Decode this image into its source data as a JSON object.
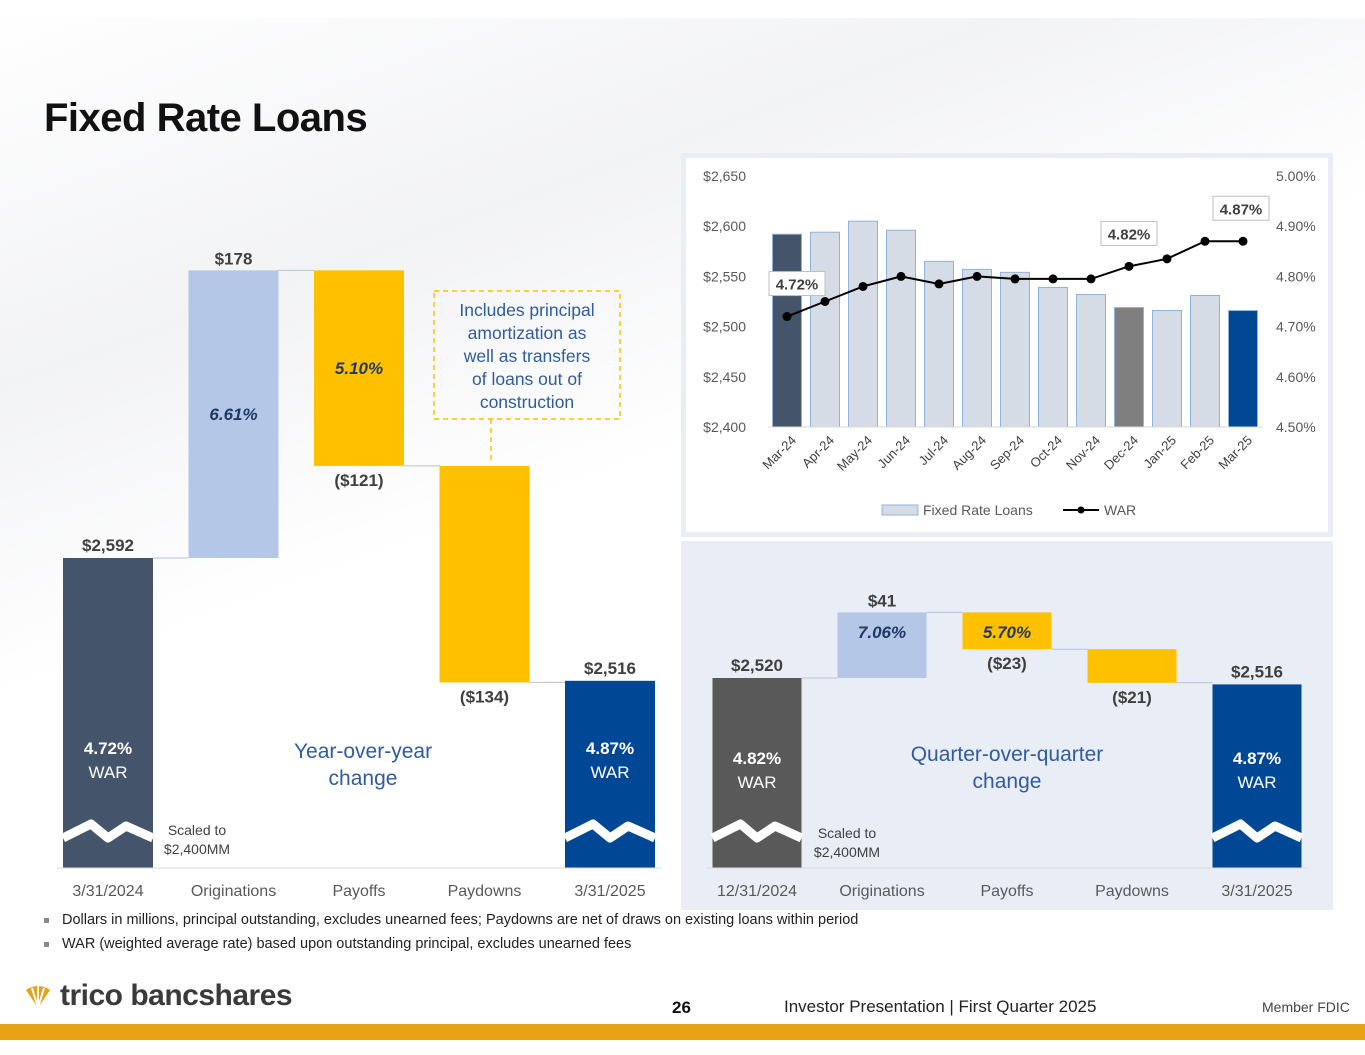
{
  "page": {
    "title": "Fixed Rate Loans",
    "notes": [
      "Dollars in millions, principal outstanding, excludes unearned fees; Paydowns are net of draws on existing loans within period",
      "WAR (weighted average rate) based upon outstanding principal, excludes unearned fees"
    ],
    "logo_text": "trico bancshares",
    "page_number": "26",
    "footer_text": "Investor Presentation  |  First Quarter 2025",
    "fdic_text": "Member FDIC"
  },
  "colors": {
    "navy": "#44546a",
    "light_blue": "#b4c7e7",
    "gold": "#ffc000",
    "dark_blue": "#004796",
    "dark_gray": "#595959",
    "gray": "#7f7f7f",
    "panel_bg": "#e9edf6",
    "accent_bar": "#e8a215"
  },
  "chart_data": [
    {
      "type": "bar",
      "subtype": "waterfall",
      "categories": [
        "3/31/2024",
        "Originations",
        "Payoffs",
        "Paydowns",
        "3/31/2025"
      ],
      "values": [
        2592,
        178,
        -121,
        -134,
        2516
      ],
      "value_labels": [
        "$2,592",
        "$178",
        "($121)",
        "($134)",
        "$2,516"
      ],
      "rate_labels": [
        "4.72%",
        "6.61%",
        "5.10%",
        "",
        "4.87%"
      ],
      "war_label": "WAR",
      "center_label": [
        "Year-over-year",
        "change"
      ],
      "scale_note": [
        "Scaled to",
        "$2,400MM"
      ],
      "callout": [
        "Includes principal",
        "amortization as",
        "well as transfers",
        "of loans out of",
        "construction"
      ]
    },
    {
      "type": "bar",
      "subtype": "combo bar + line",
      "categories": [
        "Mar-24",
        "Apr-24",
        "May-24",
        "Jun-24",
        "Jul-24",
        "Aug-24",
        "Sep-24",
        "Oct-24",
        "Nov-24",
        "Dec-24",
        "Jan-25",
        "Feb-25",
        "Mar-25"
      ],
      "series": [
        {
          "name": "Fixed Rate Loans",
          "axis": "left",
          "values": [
            2592,
            2594,
            2605,
            2596,
            2565,
            2557,
            2554,
            2539,
            2532,
            2519,
            2516,
            2531,
            2516
          ]
        },
        {
          "name": "WAR",
          "axis": "right",
          "values": [
            4.72,
            4.75,
            4.78,
            4.8,
            4.785,
            4.8,
            4.795,
            4.795,
            4.795,
            4.82,
            4.835,
            4.87,
            4.87
          ]
        }
      ],
      "ylim_left": [
        2400,
        2650
      ],
      "ylim_right": [
        4.5,
        5.0
      ],
      "left_ticks": [
        "$2,400",
        "$2,450",
        "$2,500",
        "$2,550",
        "$2,600",
        "$2,650"
      ],
      "right_ticks": [
        "4.50%",
        "4.60%",
        "4.70%",
        "4.80%",
        "4.90%",
        "5.00%"
      ],
      "annotations": [
        "4.72%",
        "4.82%",
        "4.87%"
      ],
      "legend": "bottom",
      "grid": false
    },
    {
      "type": "bar",
      "subtype": "waterfall",
      "categories": [
        "12/31/2024",
        "Originations",
        "Payoffs",
        "Paydowns",
        "3/31/2025"
      ],
      "values": [
        2520,
        41,
        -23,
        -21,
        2516
      ],
      "value_labels": [
        "$2,520",
        "$41",
        "($23)",
        "($21)",
        "$2,516"
      ],
      "rate_labels": [
        "4.82%",
        "7.06%",
        "5.70%",
        "",
        "4.87%"
      ],
      "war_label": "WAR",
      "center_label": [
        "Quarter-over-quarter",
        "change"
      ],
      "scale_note": [
        "Scaled to",
        "$2,400MM"
      ]
    }
  ]
}
